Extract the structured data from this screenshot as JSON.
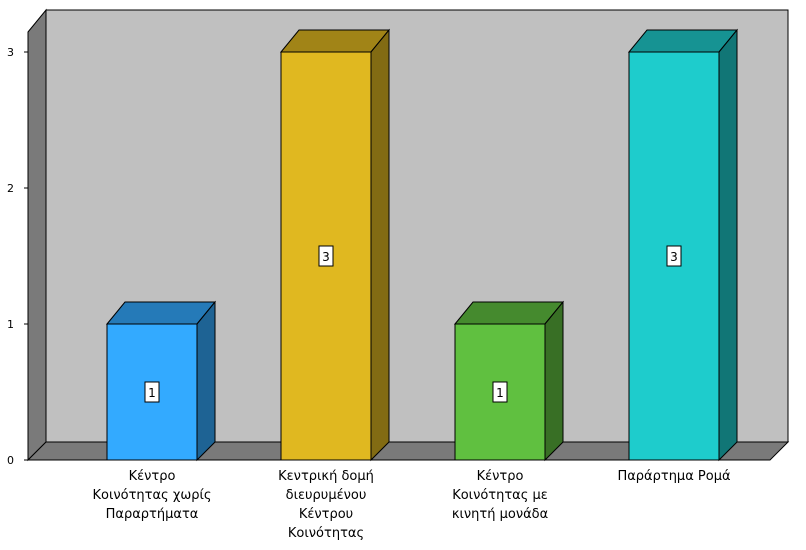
{
  "chart_data": {
    "type": "bar",
    "categories": [
      "Κέντρο Κοινότητας χωρίς Παραρτήματα",
      "Κεντρική δομή διευρυμένου Κέντρου Κοινότητας",
      "Κέντρο Κοινότητας με κινητή μονάδα",
      "Παράρτημα Ρομά"
    ],
    "category_lines": [
      [
        "Κέντρο",
        "Κοινότητας χωρίς",
        "Παραρτήματα"
      ],
      [
        "Κεντρική δομή",
        "διευρυμένου",
        "Κέντρου",
        "Κοινότητας"
      ],
      [
        "Κέντρο",
        "Κοινότητας με",
        "κινητή μονάδα"
      ],
      [
        "Παράρτημα Ρομά"
      ]
    ],
    "values": [
      1,
      3,
      1,
      3
    ],
    "data_labels": [
      "1",
      "3",
      "1",
      "3"
    ],
    "colors": [
      "#33aaff",
      "#e0b820",
      "#60c040",
      "#1ecccc"
    ],
    "yticks": [
      "0",
      "1",
      "2",
      "3"
    ],
    "ylim": [
      0,
      3
    ],
    "grid": false,
    "three_d": true,
    "title": "",
    "xlabel": "",
    "ylabel": ""
  }
}
